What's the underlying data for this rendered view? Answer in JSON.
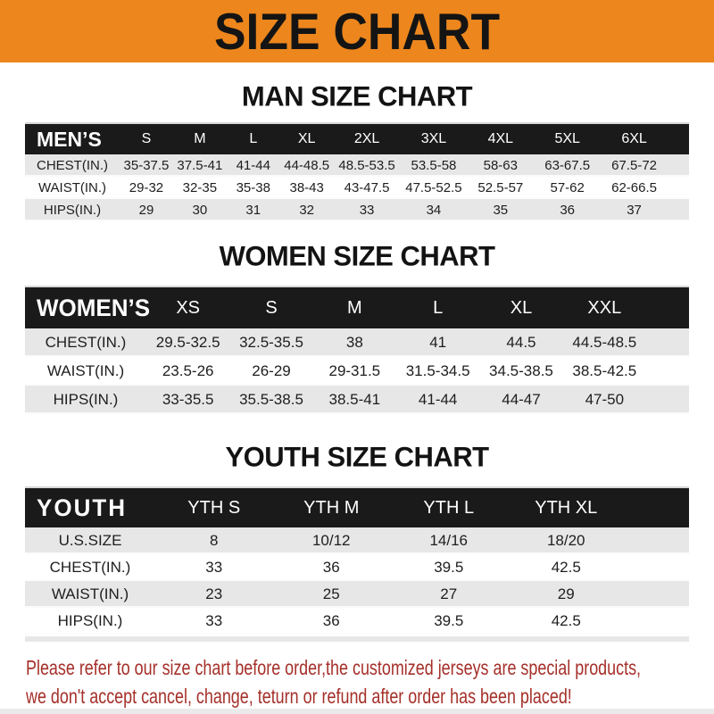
{
  "banner": {
    "title": "SIZE CHART",
    "bg_color": "#EC861D",
    "text_color": "#141414"
  },
  "sections": [
    {
      "id": "men",
      "title": "MAN SIZE CHART",
      "table": {
        "header_label": "MEN’S",
        "columns": [
          "S",
          "M",
          "L",
          "XL",
          "2XL",
          "3XL",
          "4XL",
          "5XL",
          "6XL"
        ],
        "rows": [
          {
            "label": "CHEST(IN.)",
            "values": [
              "35-37.5",
              "37.5-41",
              "41-44",
              "44-48.5",
              "48.5-53.5",
              "53.5-58",
              "58-63",
              "63-67.5",
              "67.5-72"
            ]
          },
          {
            "label": "WAIST(IN.)",
            "values": [
              "29-32",
              "32-35",
              "35-38",
              "38-43",
              "43-47.5",
              "47.5-52.5",
              "52.5-57",
              "57-62",
              "62-66.5"
            ]
          },
          {
            "label": "HIPS(IN.)",
            "values": [
              "29",
              "30",
              "31",
              "32",
              "33",
              "34",
              "35",
              "36",
              "37"
            ]
          }
        ]
      }
    },
    {
      "id": "women",
      "title": "WOMEN SIZE CHART",
      "table": {
        "header_label": "WOMEN’S",
        "columns": [
          "XS",
          "S",
          "M",
          "L",
          "XL",
          "XXL"
        ],
        "rows": [
          {
            "label": "CHEST(IN.)",
            "values": [
              "29.5-32.5",
              "32.5-35.5",
              "38",
              "41",
              "44.5",
              "44.5-48.5"
            ]
          },
          {
            "label": "WAIST(IN.)",
            "values": [
              "23.5-26",
              "26-29",
              "29-31.5",
              "31.5-34.5",
              "34.5-38.5",
              "38.5-42.5"
            ]
          },
          {
            "label": "HIPS(IN.)",
            "values": [
              "33-35.5",
              "35.5-38.5",
              "38.5-41",
              "41-44",
              "44-47",
              "47-50"
            ]
          }
        ]
      }
    },
    {
      "id": "youth",
      "title": "YOUTH SIZE CHART",
      "table": {
        "header_label": "YOUTH",
        "columns": [
          "YTH S",
          "YTH M",
          "YTH L",
          "YTH XL"
        ],
        "rows": [
          {
            "label": "U.S.SIZE",
            "values": [
              "8",
              "10/12",
              "14/16",
              "18/20"
            ]
          },
          {
            "label": "CHEST(IN.)",
            "values": [
              "33",
              "36",
              "39.5",
              "42.5"
            ]
          },
          {
            "label": "WAIST(IN.)",
            "values": [
              "23",
              "25",
              "27",
              "29"
            ]
          },
          {
            "label": "HIPS(IN.)",
            "values": [
              "33",
              "36",
              "39.5",
              "42.5"
            ]
          }
        ]
      }
    }
  ],
  "footer": {
    "line1": "Please refer to our size chart before order,the customized jerseys are special products,",
    "line2": "we don't accept cancel, change, teturn or refund after order has been placed!",
    "text_color": "#A5302A"
  },
  "colors": {
    "accent_orange": "#EC861D",
    "header_bar_black": "#1a1a1a",
    "row_stripe_gray": "#e7e7e7",
    "note_red": "#A5302A"
  }
}
